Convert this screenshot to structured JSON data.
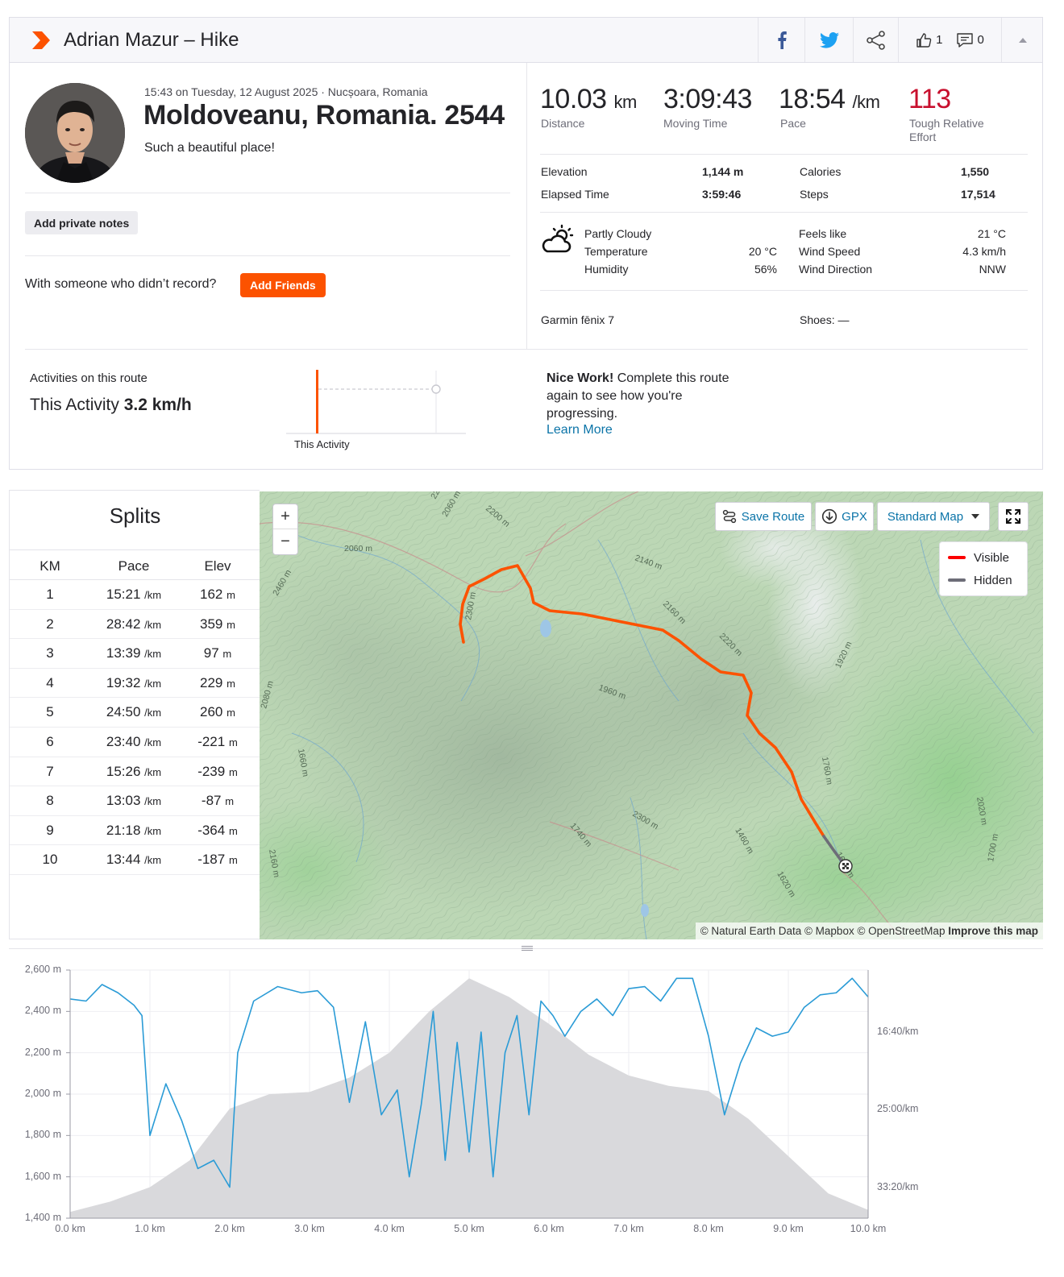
{
  "header": {
    "title": "Adrian Mazur – Hike",
    "kudos_count": "1",
    "comment_count": "0"
  },
  "activity": {
    "meta": "15:43 on Tuesday, 12 August 2025 · Nucșoara, Romania",
    "name": "Moldoveanu, Romania. 2544",
    "description": "Such a beautiful place!",
    "add_notes_label": "Add private notes",
    "with_someone_text": "With someone who didn’t record?",
    "add_friends_label": "Add Friends"
  },
  "stats": {
    "distance": {
      "value": "10.03",
      "unit": "km",
      "label": "Distance"
    },
    "moving_time": {
      "value": "3:09:43",
      "label": "Moving Time"
    },
    "pace": {
      "value": "18:54",
      "unit": "/km",
      "label": "Pace"
    },
    "relative_effort": {
      "value": "113",
      "label": "Tough Relative Effort"
    },
    "elevation_label": "Elevation",
    "elevation": "1,144 m",
    "elapsed_label": "Elapsed Time",
    "elapsed": "3:59:46",
    "calories_label": "Calories",
    "calories": "1,550",
    "steps_label": "Steps",
    "steps": "17,514"
  },
  "weather": {
    "condition": "Partly Cloudy",
    "temperature_label": "Temperature",
    "temperature": "20 °C",
    "humidity_label": "Humidity",
    "humidity": "56%",
    "feels_like_label": "Feels like",
    "feels_like": "21 °C",
    "wind_speed_label": "Wind Speed",
    "wind_speed": "4.3 km/h",
    "wind_dir_label": "Wind Direction",
    "wind_dir": "NNW"
  },
  "gear": {
    "device": "Garmin fēnix 7",
    "shoes": "Shoes: —"
  },
  "route": {
    "title": "Activities on this route",
    "this_activity_prefix": "This Activity",
    "this_activity_speed": "3.2 km/h",
    "chart_label": "This Activity",
    "nice_bold": "Nice Work!",
    "nice_text": " Complete this route again to see how you're progressing.",
    "learn_more": "Learn More"
  },
  "splits": {
    "title": "Splits",
    "headers": [
      "KM",
      "Pace",
      "Elev"
    ],
    "pace_unit": "/km",
    "elev_unit": "m",
    "rows": [
      {
        "km": "1",
        "pace": "15:21",
        "elev": "162"
      },
      {
        "km": "2",
        "pace": "28:42",
        "elev": "359"
      },
      {
        "km": "3",
        "pace": "13:39",
        "elev": "97"
      },
      {
        "km": "4",
        "pace": "19:32",
        "elev": "229"
      },
      {
        "km": "5",
        "pace": "24:50",
        "elev": "260"
      },
      {
        "km": "6",
        "pace": "23:40",
        "elev": "-221"
      },
      {
        "km": "7",
        "pace": "15:26",
        "elev": "-239"
      },
      {
        "km": "8",
        "pace": "13:03",
        "elev": "-87"
      },
      {
        "km": "9",
        "pace": "21:18",
        "elev": "-364"
      },
      {
        "km": "10",
        "pace": "13:44",
        "elev": "-187"
      }
    ]
  },
  "map": {
    "zoom_in": "+",
    "zoom_out": "−",
    "save_route": "Save Route",
    "gpx": "GPX",
    "map_style": "Standard Map",
    "legend_visible": "Visible",
    "legend_hidden": "Hidden",
    "attribution": "© Natural Earth Data © Mapbox © OpenStreetMap",
    "improve": "Improve this map",
    "contour_labels": [
      "2060 m",
      "2220 m",
      "2200 m",
      "2060 m",
      "2460 m",
      "2300 m",
      "2140 m",
      "2160 m",
      "2220 m",
      "1960 m",
      "1920 m",
      "2080 m",
      "1660 m",
      "1760 m",
      "2020 m",
      "2300 m",
      "1740 m",
      "1460 m",
      "1680 m",
      "1620 m",
      "1700 m",
      "2160 m"
    ],
    "colors": {
      "visible": "#fc5200",
      "hidden": "#6d6d78"
    }
  },
  "chart_data": {
    "type": "area",
    "x_unit": "km",
    "x_ticks": [
      "0.0 km",
      "1.0 km",
      "2.0 km",
      "3.0 km",
      "4.0 km",
      "5.0 km",
      "6.0 km",
      "7.0 km",
      "8.0 km",
      "9.0 km",
      "10.0 km"
    ],
    "y_ticks": [
      "2,600 m",
      "2,400 m",
      "2,200 m",
      "2,000 m",
      "1,800 m",
      "1,600 m",
      "1,400 m"
    ],
    "y2_ticks": [
      "16:40/km",
      "25:00/km",
      "33:20/km"
    ],
    "xlim": [
      0,
      10
    ],
    "ylim": [
      1400,
      2600
    ],
    "elevation": {
      "x": [
        0,
        0.5,
        1,
        1.5,
        2,
        2.5,
        3,
        3.5,
        4,
        4.5,
        5,
        5.5,
        6,
        6.5,
        7,
        7.5,
        8,
        8.5,
        9,
        9.5,
        10
      ],
      "y": [
        1430,
        1480,
        1550,
        1680,
        1930,
        2000,
        2010,
        2080,
        2200,
        2400,
        2560,
        2470,
        2340,
        2190,
        2090,
        2040,
        2015,
        1880,
        1700,
        1520,
        1440
      ]
    },
    "pace_series": {
      "x": [
        0,
        0.2,
        0.4,
        0.6,
        0.8,
        0.9,
        1.0,
        1.2,
        1.4,
        1.6,
        1.8,
        2.0,
        2.1,
        2.3,
        2.6,
        2.9,
        3.1,
        3.3,
        3.5,
        3.7,
        3.9,
        4.1,
        4.25,
        4.4,
        4.55,
        4.7,
        4.85,
        5.0,
        5.15,
        5.3,
        5.45,
        5.6,
        5.75,
        5.9,
        6.05,
        6.2,
        6.4,
        6.6,
        6.8,
        7.0,
        7.2,
        7.4,
        7.6,
        7.8,
        8.0,
        8.2,
        8.4,
        8.6,
        8.8,
        9.0,
        9.2,
        9.4,
        9.6,
        9.8,
        10.0
      ],
      "y": [
        2460,
        2450,
        2530,
        2490,
        2430,
        2380,
        1800,
        2050,
        1870,
        1640,
        1680,
        1550,
        2200,
        2450,
        2520,
        2490,
        2500,
        2420,
        1960,
        2350,
        1900,
        2020,
        1600,
        1950,
        2400,
        1680,
        2250,
        1720,
        2300,
        1600,
        2200,
        2380,
        1900,
        2450,
        2380,
        2280,
        2400,
        2460,
        2380,
        2510,
        2520,
        2450,
        2560,
        2560,
        2280,
        1900,
        2150,
        2320,
        2280,
        2300,
        2420,
        2480,
        2490,
        2560,
        2470
      ]
    },
    "grid": true,
    "colors": {
      "elevation_fill": "#d9d9dc",
      "pace_line": "#2a9bd6"
    }
  }
}
